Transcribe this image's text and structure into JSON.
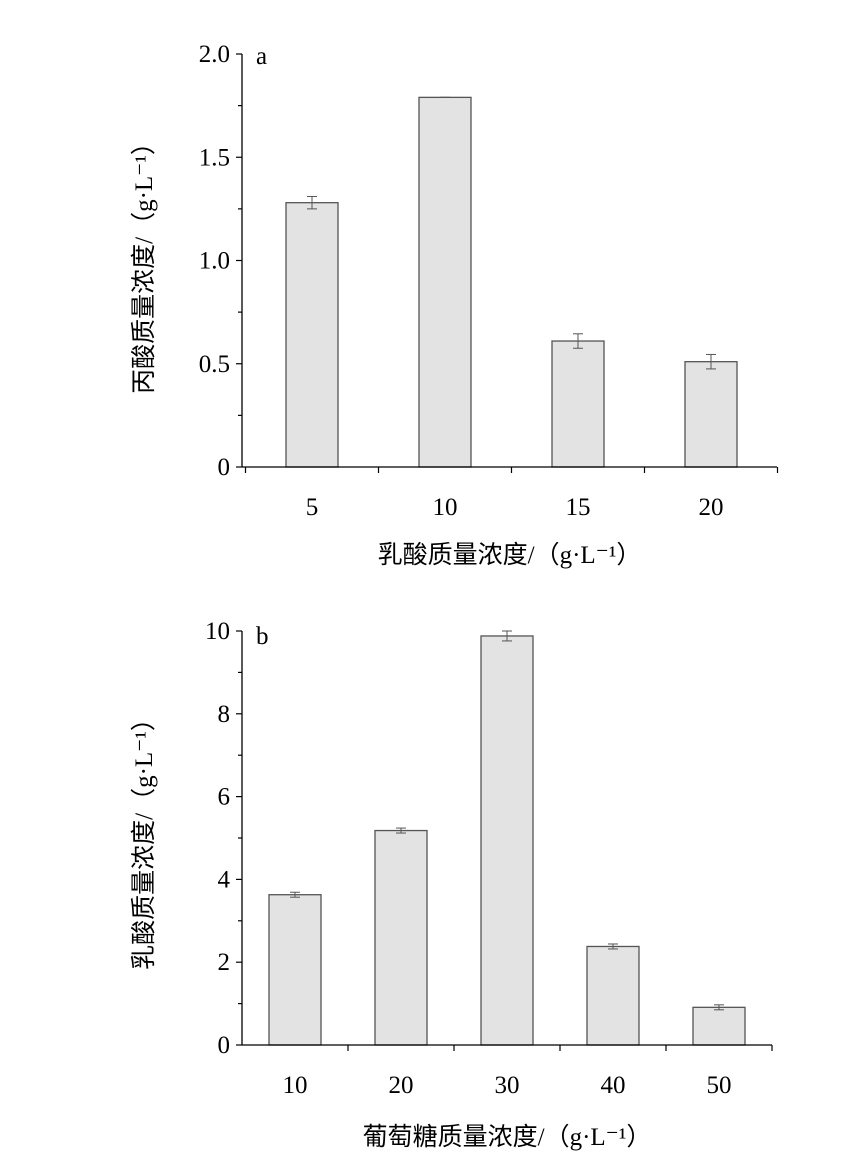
{
  "chart_data": [
    {
      "type": "bar",
      "panel_label": "a",
      "categories": [
        "5",
        "10",
        "15",
        "20"
      ],
      "values": [
        1.28,
        1.79,
        0.61,
        0.51
      ],
      "errors": [
        0.03,
        0.0,
        0.035,
        0.035
      ],
      "xlabel": "乳酸质量浓度/（g·L⁻¹）",
      "ylabel": "丙酸质量浓度/（g·L⁻¹）",
      "ylim": [
        0,
        2.0
      ],
      "yticks": [
        0,
        0.5,
        1.0,
        1.5,
        2.0
      ],
      "ytick_labels": [
        "0",
        "0.5",
        "1.0",
        "1.5",
        "2.0"
      ],
      "grid": false,
      "bar_color": "#e3e3e3"
    },
    {
      "type": "bar",
      "panel_label": "b",
      "categories": [
        "10",
        "20",
        "30",
        "40",
        "50"
      ],
      "values": [
        3.63,
        5.18,
        9.88,
        2.38,
        0.91
      ],
      "errors": [
        0.06,
        0.06,
        0.12,
        0.06,
        0.06
      ],
      "xlabel": "葡萄糖质量浓度/（g·L⁻¹）",
      "ylabel": "乳酸质量浓度/（g·L⁻¹）",
      "ylim": [
        0,
        10
      ],
      "yticks": [
        0,
        2,
        4,
        6,
        8,
        10
      ],
      "ytick_labels": [
        "0",
        "2",
        "4",
        "6",
        "8",
        "10"
      ],
      "grid": false,
      "bar_color": "#e3e3e3"
    }
  ]
}
